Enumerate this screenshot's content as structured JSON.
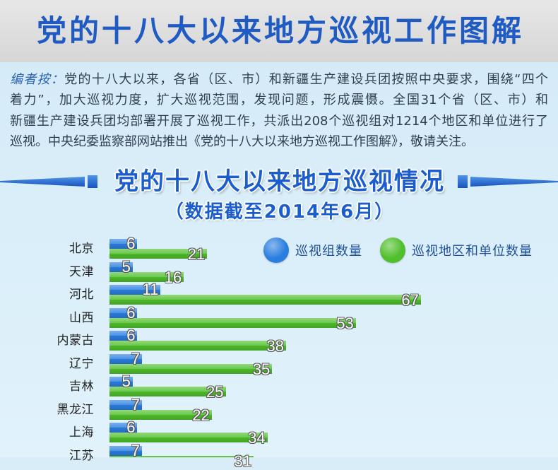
{
  "header": {
    "title": "党的十八大以来地方巡视工作图解"
  },
  "editor_note": {
    "label": "编者按：",
    "lines": [
      "党的十八大以来，各省（区、市）和新疆生产建设兵团按照中央要求，围绕“四个",
      "着力”，加大巡视力度，扩大巡视范围，发现问题，形成震慑。全国31个省（区、市）和",
      "新疆生产建设兵团均部署开展了巡视工作，共派出208个巡视组对1214个地区和单位进行了",
      "巡视。中央纪委监察部网站推出《党的十八大以来地方巡视工作图解》，敬请关注。"
    ]
  },
  "colors": {
    "accent": "#1b5dcc",
    "header_title": "#1f5bc2",
    "note_label": "#2a62b2",
    "note_text": "#2e3f52",
    "legend_text": "#1f4f98"
  },
  "chart_data": {
    "type": "bar",
    "orientation": "horizontal",
    "title": "党的十八大以来地方巡视情况",
    "subtitle": "（数据截至2014年6月）",
    "categories": [
      "北京",
      "天津",
      "河北",
      "山西",
      "内蒙古",
      "辽宁",
      "吉林",
      "黑龙江",
      "上海",
      "江苏"
    ],
    "series": [
      {
        "name": "巡视组数量",
        "color": "#2a7ee0",
        "values": [
          6,
          5,
          11,
          6,
          6,
          7,
          5,
          7,
          6,
          7
        ]
      },
      {
        "name": "巡视地区和单位数量",
        "color": "#4fbf2b",
        "values": [
          21,
          16,
          67,
          53,
          38,
          35,
          25,
          22,
          34,
          31
        ]
      }
    ],
    "data_labels": true,
    "legend": "top-right",
    "grid": false
  }
}
